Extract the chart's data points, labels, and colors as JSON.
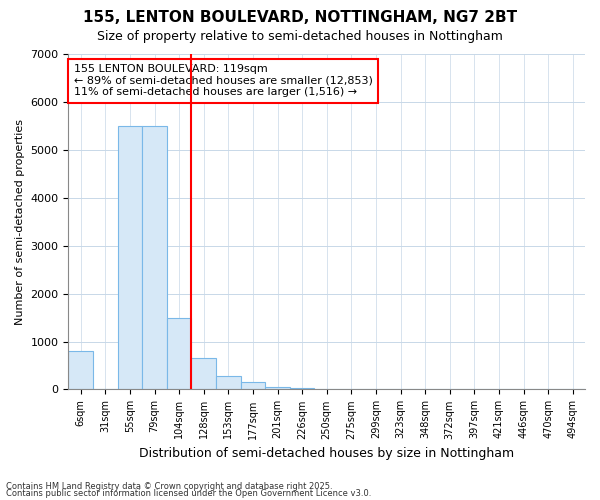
{
  "title1": "155, LENTON BOULEVARD, NOTTINGHAM, NG7 2BT",
  "title2": "Size of property relative to semi-detached houses in Nottingham",
  "xlabel": "Distribution of semi-detached houses by size in Nottingham",
  "ylabel": "Number of semi-detached properties",
  "bar_labels": [
    "6sqm",
    "31sqm",
    "55sqm",
    "79sqm",
    "104sqm",
    "128sqm",
    "153sqm",
    "177sqm",
    "201sqm",
    "226sqm",
    "250sqm",
    "275sqm",
    "299sqm",
    "323sqm",
    "348sqm",
    "372sqm",
    "397sqm",
    "421sqm",
    "446sqm",
    "470sqm",
    "494sqm"
  ],
  "bar_values": [
    800,
    0,
    5500,
    5500,
    1500,
    650,
    280,
    150,
    50,
    20,
    5,
    0,
    0,
    0,
    0,
    0,
    0,
    0,
    0,
    0,
    0
  ],
  "bar_color": "#d6e8f7",
  "bar_edge_color": "#7ab8e8",
  "property_line_index": 5,
  "annotation_line1": "155 LENTON BOULEVARD: 119sqm",
  "annotation_line2": "← 89% of semi-detached houses are smaller (12,853)",
  "annotation_line3": "11% of semi-detached houses are larger (1,516) →",
  "ylim": [
    0,
    7000
  ],
  "yticks": [
    0,
    1000,
    2000,
    3000,
    4000,
    5000,
    6000,
    7000
  ],
  "footer1": "Contains HM Land Registry data © Crown copyright and database right 2025.",
  "footer2": "Contains public sector information licensed under the Open Government Licence v3.0.",
  "bg_color": "#ffffff",
  "grid_color": "#c8d8e8"
}
